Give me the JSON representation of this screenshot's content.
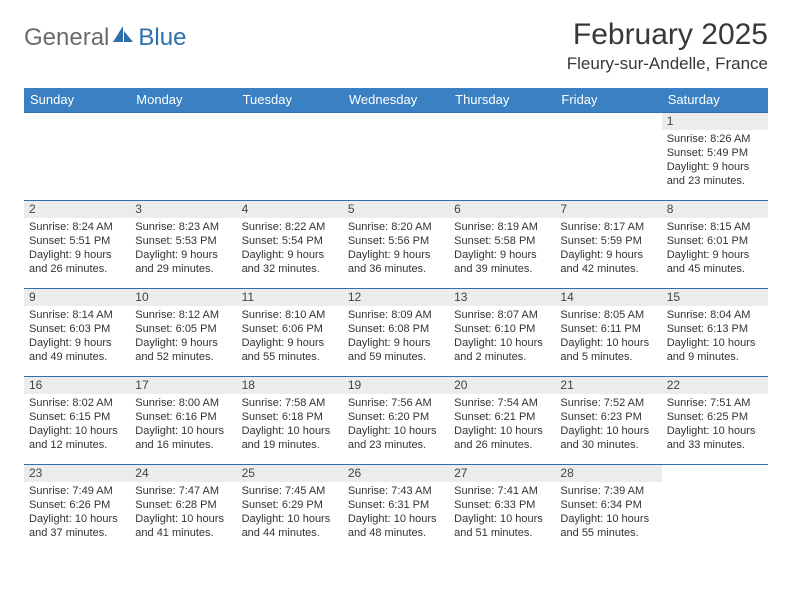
{
  "brand": {
    "word1": "General",
    "word2": "Blue"
  },
  "title": "February 2025",
  "location": "Fleury-sur-Andelle, France",
  "colors": {
    "header_bg": "#3a80c2",
    "header_text": "#ffffff",
    "row_border": "#2f6fab",
    "daynum_bg": "#ececec",
    "text": "#333333",
    "logo_gray": "#6b6b6b",
    "logo_blue": "#2f6fab"
  },
  "daysOfWeek": [
    "Sunday",
    "Monday",
    "Tuesday",
    "Wednesday",
    "Thursday",
    "Friday",
    "Saturday"
  ],
  "weeks": [
    [
      {
        "n": "",
        "sr": "",
        "ss": "",
        "dl": ""
      },
      {
        "n": "",
        "sr": "",
        "ss": "",
        "dl": ""
      },
      {
        "n": "",
        "sr": "",
        "ss": "",
        "dl": ""
      },
      {
        "n": "",
        "sr": "",
        "ss": "",
        "dl": ""
      },
      {
        "n": "",
        "sr": "",
        "ss": "",
        "dl": ""
      },
      {
        "n": "",
        "sr": "",
        "ss": "",
        "dl": ""
      },
      {
        "n": "1",
        "sr": "8:26 AM",
        "ss": "5:49 PM",
        "dl": "9 hours and 23 minutes."
      }
    ],
    [
      {
        "n": "2",
        "sr": "8:24 AM",
        "ss": "5:51 PM",
        "dl": "9 hours and 26 minutes."
      },
      {
        "n": "3",
        "sr": "8:23 AM",
        "ss": "5:53 PM",
        "dl": "9 hours and 29 minutes."
      },
      {
        "n": "4",
        "sr": "8:22 AM",
        "ss": "5:54 PM",
        "dl": "9 hours and 32 minutes."
      },
      {
        "n": "5",
        "sr": "8:20 AM",
        "ss": "5:56 PM",
        "dl": "9 hours and 36 minutes."
      },
      {
        "n": "6",
        "sr": "8:19 AM",
        "ss": "5:58 PM",
        "dl": "9 hours and 39 minutes."
      },
      {
        "n": "7",
        "sr": "8:17 AM",
        "ss": "5:59 PM",
        "dl": "9 hours and 42 minutes."
      },
      {
        "n": "8",
        "sr": "8:15 AM",
        "ss": "6:01 PM",
        "dl": "9 hours and 45 minutes."
      }
    ],
    [
      {
        "n": "9",
        "sr": "8:14 AM",
        "ss": "6:03 PM",
        "dl": "9 hours and 49 minutes."
      },
      {
        "n": "10",
        "sr": "8:12 AM",
        "ss": "6:05 PM",
        "dl": "9 hours and 52 minutes."
      },
      {
        "n": "11",
        "sr": "8:10 AM",
        "ss": "6:06 PM",
        "dl": "9 hours and 55 minutes."
      },
      {
        "n": "12",
        "sr": "8:09 AM",
        "ss": "6:08 PM",
        "dl": "9 hours and 59 minutes."
      },
      {
        "n": "13",
        "sr": "8:07 AM",
        "ss": "6:10 PM",
        "dl": "10 hours and 2 minutes."
      },
      {
        "n": "14",
        "sr": "8:05 AM",
        "ss": "6:11 PM",
        "dl": "10 hours and 5 minutes."
      },
      {
        "n": "15",
        "sr": "8:04 AM",
        "ss": "6:13 PM",
        "dl": "10 hours and 9 minutes."
      }
    ],
    [
      {
        "n": "16",
        "sr": "8:02 AM",
        "ss": "6:15 PM",
        "dl": "10 hours and 12 minutes."
      },
      {
        "n": "17",
        "sr": "8:00 AM",
        "ss": "6:16 PM",
        "dl": "10 hours and 16 minutes."
      },
      {
        "n": "18",
        "sr": "7:58 AM",
        "ss": "6:18 PM",
        "dl": "10 hours and 19 minutes."
      },
      {
        "n": "19",
        "sr": "7:56 AM",
        "ss": "6:20 PM",
        "dl": "10 hours and 23 minutes."
      },
      {
        "n": "20",
        "sr": "7:54 AM",
        "ss": "6:21 PM",
        "dl": "10 hours and 26 minutes."
      },
      {
        "n": "21",
        "sr": "7:52 AM",
        "ss": "6:23 PM",
        "dl": "10 hours and 30 minutes."
      },
      {
        "n": "22",
        "sr": "7:51 AM",
        "ss": "6:25 PM",
        "dl": "10 hours and 33 minutes."
      }
    ],
    [
      {
        "n": "23",
        "sr": "7:49 AM",
        "ss": "6:26 PM",
        "dl": "10 hours and 37 minutes."
      },
      {
        "n": "24",
        "sr": "7:47 AM",
        "ss": "6:28 PM",
        "dl": "10 hours and 41 minutes."
      },
      {
        "n": "25",
        "sr": "7:45 AM",
        "ss": "6:29 PM",
        "dl": "10 hours and 44 minutes."
      },
      {
        "n": "26",
        "sr": "7:43 AM",
        "ss": "6:31 PM",
        "dl": "10 hours and 48 minutes."
      },
      {
        "n": "27",
        "sr": "7:41 AM",
        "ss": "6:33 PM",
        "dl": "10 hours and 51 minutes."
      },
      {
        "n": "28",
        "sr": "7:39 AM",
        "ss": "6:34 PM",
        "dl": "10 hours and 55 minutes."
      },
      {
        "n": "",
        "sr": "",
        "ss": "",
        "dl": ""
      }
    ]
  ],
  "labels": {
    "sunrise": "Sunrise: ",
    "sunset": "Sunset: ",
    "daylight": "Daylight: "
  }
}
